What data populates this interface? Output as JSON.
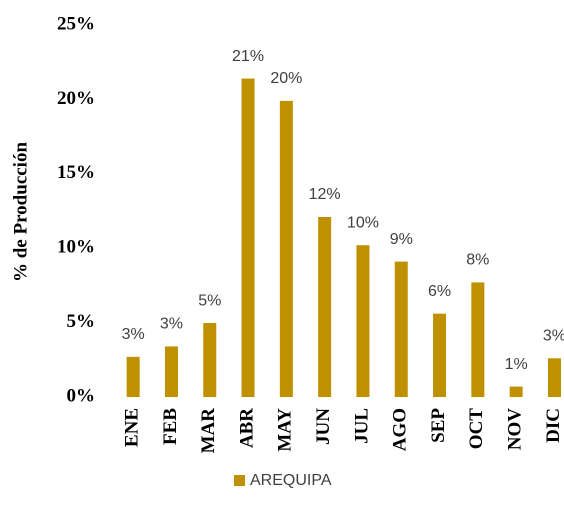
{
  "chart_data": {
    "type": "bar",
    "y_label": "% de Producción",
    "categories": [
      "ENE",
      "FEB",
      "MAR",
      "ABR",
      "MAY",
      "JUN",
      "JUL",
      "AGO",
      "SEP",
      "OCT",
      "NOV",
      "DIC"
    ],
    "series": [
      {
        "name": "AREQUIPA",
        "color": "#bf9000",
        "values": [
          2.7,
          3.4,
          4.97,
          21.4,
          19.9,
          12.1,
          10.2,
          9.1,
          5.6,
          7.7,
          0.7,
          2.6
        ],
        "value_labels": [
          "3%",
          "3%",
          "5%",
          "21%",
          "20%",
          "12%",
          "10%",
          "9%",
          "6%",
          "8%",
          "1%",
          "3%"
        ]
      }
    ],
    "ylim": [
      0,
      25
    ],
    "yticks": [
      {
        "value": 0,
        "label": "0%"
      },
      {
        "value": 5,
        "label": "5%"
      },
      {
        "value": 10,
        "label": "10%"
      },
      {
        "value": 15,
        "label": "15%"
      },
      {
        "value": 20,
        "label": "20%"
      },
      {
        "value": 25,
        "label": "25%"
      }
    ],
    "grid": false,
    "legend": "bottom"
  }
}
